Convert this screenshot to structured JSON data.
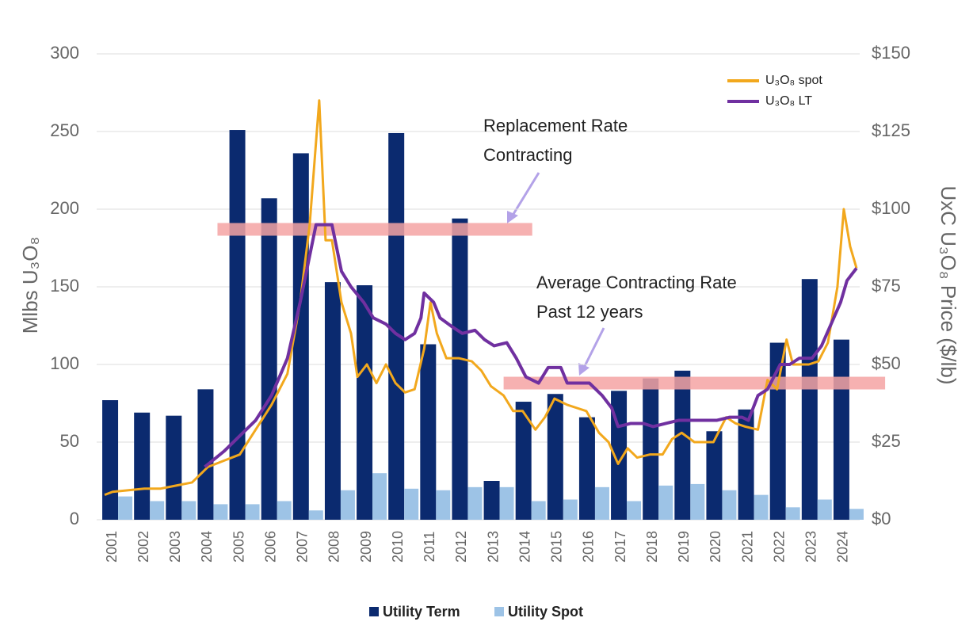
{
  "chart_data": {
    "type": "bar",
    "y_label": "Mlbs U₃O₈",
    "y2_label": "UxC U₃O₈ Price ($/lb)",
    "categories": [
      "2001",
      "2002",
      "2003",
      "2004",
      "2005",
      "2006",
      "2007",
      "2008",
      "2009",
      "2010",
      "2011",
      "2012",
      "2013",
      "2014",
      "2015",
      "2016",
      "2017",
      "2018",
      "2019",
      "2020",
      "2021",
      "2022",
      "2023",
      "2024"
    ],
    "series": [
      {
        "name": "Utility Term",
        "color": "#0b2a6f",
        "values": [
          77,
          69,
          67,
          84,
          251,
          207,
          236,
          153,
          151,
          249,
          113,
          194,
          25,
          76,
          81,
          66,
          83,
          91,
          96,
          57,
          71,
          114,
          155,
          116
        ]
      },
      {
        "name": "Utility Spot",
        "color": "#9dc3e6",
        "values": [
          15,
          12,
          12,
          10,
          10,
          12,
          6,
          19,
          30,
          20,
          19,
          21,
          21,
          12,
          13,
          21,
          12,
          22,
          23,
          19,
          16,
          8,
          13,
          7
        ]
      }
    ],
    "lines": [
      {
        "name": "U₃O₈ spot",
        "color": "#f2a81d",
        "axis": "y2",
        "x": [
          2000.75,
          2001.0,
          2001.5,
          2002.0,
          2002.5,
          2003.0,
          2003.5,
          2004.0,
          2004.5,
          2005.0,
          2005.5,
          2006.0,
          2006.5,
          2006.9,
          2007.2,
          2007.5,
          2007.7,
          2007.9,
          2008.2,
          2008.5,
          2008.7,
          2009.0,
          2009.3,
          2009.6,
          2009.9,
          2010.2,
          2010.5,
          2010.8,
          2011.0,
          2011.2,
          2011.5,
          2011.9,
          2012.3,
          2012.6,
          2012.9,
          2013.3,
          2013.6,
          2013.9,
          2014.3,
          2014.6,
          2014.9,
          2015.3,
          2015.6,
          2015.9,
          2016.3,
          2016.6,
          2016.9,
          2017.2,
          2017.5,
          2017.9,
          2018.3,
          2018.6,
          2018.9,
          2019.3,
          2019.6,
          2019.9,
          2020.3,
          2020.6,
          2020.9,
          2021.3,
          2021.6,
          2021.9,
          2022.2,
          2022.4,
          2022.7,
          2022.9,
          2023.2,
          2023.5,
          2023.8,
          2024.0,
          2024.2,
          2024.4
        ],
        "values": [
          8,
          9,
          9.5,
          10,
          10,
          11,
          12,
          17,
          19,
          21,
          29,
          37,
          47,
          70,
          95,
          135,
          90,
          90,
          70,
          60,
          46,
          50,
          44,
          50,
          44,
          41,
          42,
          55,
          70,
          60,
          52,
          52,
          51,
          48,
          43,
          40,
          35,
          35,
          29,
          33,
          39,
          37,
          36,
          35,
          28,
          25,
          18,
          23,
          20,
          21,
          21,
          26,
          28,
          25,
          25,
          25,
          33,
          31,
          30,
          29,
          45,
          42,
          58,
          50,
          50,
          50,
          51,
          57,
          75,
          100,
          88,
          81
        ]
      },
      {
        "name": "U₃O₈ LT",
        "color": "#7030a0",
        "axis": "y2",
        "x": [
          2003.9,
          2004.5,
          2005.0,
          2005.5,
          2006.0,
          2006.5,
          2006.9,
          2007.2,
          2007.4,
          2007.9,
          2008.2,
          2008.5,
          2008.9,
          2009.2,
          2009.6,
          2009.9,
          2010.2,
          2010.5,
          2010.7,
          2010.8,
          2011.1,
          2011.3,
          2011.7,
          2012.0,
          2012.4,
          2012.7,
          2013.0,
          2013.4,
          2013.7,
          2014.0,
          2014.4,
          2014.7,
          2015.1,
          2015.3,
          2015.7,
          2016.0,
          2016.4,
          2016.7,
          2016.9,
          2017.3,
          2017.7,
          2018.0,
          2018.4,
          2018.8,
          2019.3,
          2019.7,
          2020.0,
          2020.4,
          2020.8,
          2021.0,
          2021.3,
          2021.6,
          2022.0,
          2022.3,
          2022.6,
          2023.0,
          2023.3,
          2023.6,
          2023.9,
          2024.1,
          2024.4
        ],
        "values": [
          17,
          22,
          27,
          32,
          40,
          52,
          70,
          85,
          95,
          95,
          80,
          75,
          70,
          65,
          63,
          60,
          58,
          60,
          65,
          73,
          70,
          65,
          62,
          60,
          61,
          58,
          56,
          57,
          52,
          46,
          44,
          49,
          49,
          44,
          44,
          44,
          40,
          36,
          30,
          31,
          31,
          30,
          31,
          32,
          32,
          32,
          32,
          33,
          33,
          32,
          40,
          42,
          50,
          50,
          52,
          52,
          56,
          63,
          70,
          77,
          81
        ]
      }
    ],
    "xlim": [
      2000.5,
      2024.5
    ],
    "ylim": [
      0,
      300
    ],
    "yticks": [
      0,
      50,
      100,
      150,
      200,
      250,
      300
    ],
    "y2lim": [
      0,
      150
    ],
    "y2ticks": [
      {
        "value": 0,
        "label": "$0"
      },
      {
        "value": 25,
        "label": "$25"
      },
      {
        "value": 50,
        "label": "$50"
      },
      {
        "value": 75,
        "label": "$75"
      },
      {
        "value": 100,
        "label": "$100"
      },
      {
        "value": 125,
        "label": "$125"
      },
      {
        "value": 150,
        "label": "$150"
      }
    ],
    "grid": true,
    "bands": [
      {
        "lines": [
          "Replacement Rate",
          "Contracting"
        ],
        "value": 187,
        "x": [
          2004.3,
          2014.2
        ],
        "color": "#f4a3a3"
      },
      {
        "lines": [
          "Average Contracting Rate",
          "Past 12 years"
        ],
        "value": 88,
        "x": [
          2013.3,
          2025.3
        ],
        "color": "#f4a3a3"
      }
    ]
  }
}
